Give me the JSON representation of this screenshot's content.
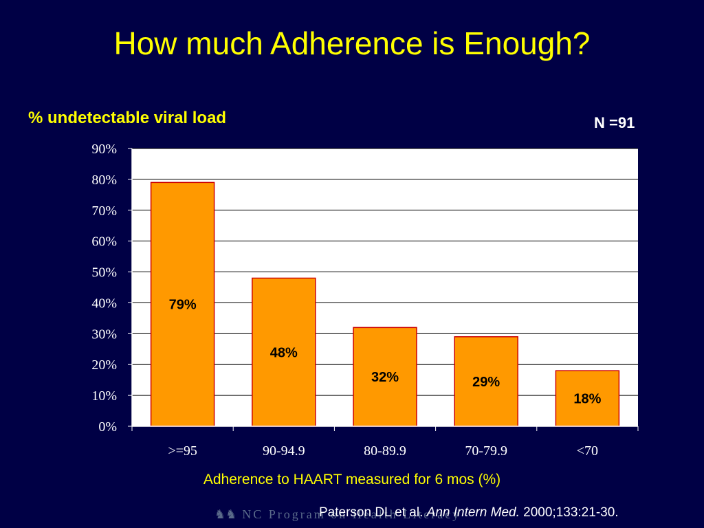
{
  "slide": {
    "title": "How much Adherence is Enough?",
    "y_caption": "% undetectable viral load",
    "n_label": "N =91",
    "x_caption": "Adherence  to HAART measured for 6 mos (%)",
    "citation_authors": "Paterson DL et al.",
    "citation_journal": "Ann Intern Med.",
    "citation_rest": "2000;133:21-30.",
    "footer_logo_text": "NC Program on Health Literacy",
    "footer_logo_icon": "people-reading-icon"
  },
  "colors": {
    "background": "#000045",
    "title": "#ffff00",
    "bar_fill": "#ff9900",
    "bar_stroke": "#cc0000",
    "plot_bg": "#ffffff"
  },
  "chart_data": {
    "type": "bar",
    "categories": [
      ">=95",
      "90-94.9",
      "80-89.9",
      "70-79.9",
      "<70"
    ],
    "values": [
      79,
      48,
      32,
      29,
      18
    ],
    "data_labels": [
      "79%",
      "48%",
      "32%",
      "29%",
      "18%"
    ],
    "yticks": [
      "0%",
      "10%",
      "20%",
      "30%",
      "40%",
      "50%",
      "60%",
      "70%",
      "80%",
      "90%"
    ],
    "ylim": [
      0,
      90
    ],
    "grid": true,
    "legend": "none"
  }
}
